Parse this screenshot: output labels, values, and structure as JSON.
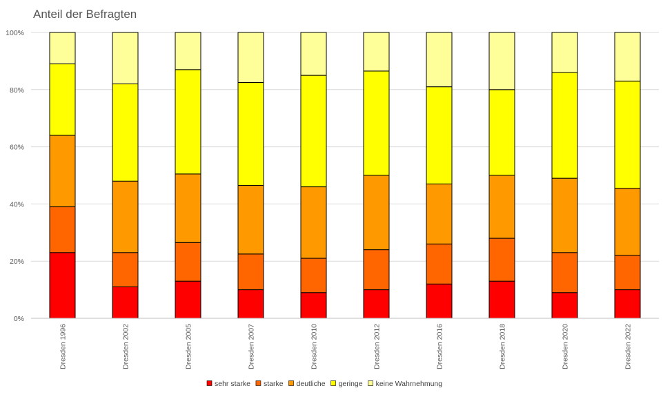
{
  "chart_data": {
    "type": "bar",
    "stacked": true,
    "title": "Anteil der Befragten",
    "xlabel": "",
    "ylabel": "",
    "ylim": [
      0,
      100
    ],
    "yticks": [
      "0%",
      "20%",
      "40%",
      "60%",
      "80%",
      "100%"
    ],
    "grid": true,
    "legend_position": "bottom",
    "categories": [
      "Dresden 1996",
      "Dresden 2002",
      "Dresden 2005",
      "Dresden 2007",
      "Dresden 2010",
      "Dresden 2012",
      "Dresden 2016",
      "Dresden 2018",
      "Dresden 2020",
      "Dresden 2022"
    ],
    "series": [
      {
        "name": "sehr starke",
        "color": "#ff0000",
        "values": [
          23,
          11,
          13,
          10,
          9,
          10,
          12,
          13,
          9,
          10
        ]
      },
      {
        "name": "starke",
        "color": "#ff6600",
        "values": [
          16,
          12,
          13.5,
          12.5,
          12,
          14,
          14,
          15,
          14,
          12
        ]
      },
      {
        "name": "deutliche",
        "color": "#ff9900",
        "values": [
          25,
          25,
          24,
          24,
          25,
          26,
          21,
          22,
          26,
          23.5
        ]
      },
      {
        "name": "geringe",
        "color": "#ffff00",
        "values": [
          25,
          34,
          36.5,
          36,
          39,
          36.5,
          34,
          30,
          37,
          37.5
        ]
      },
      {
        "name": "keine Wahrnehmung",
        "color": "#ffff99",
        "values": [
          11,
          18,
          13,
          17.5,
          15,
          13.5,
          19,
          20,
          14,
          17
        ]
      }
    ]
  }
}
